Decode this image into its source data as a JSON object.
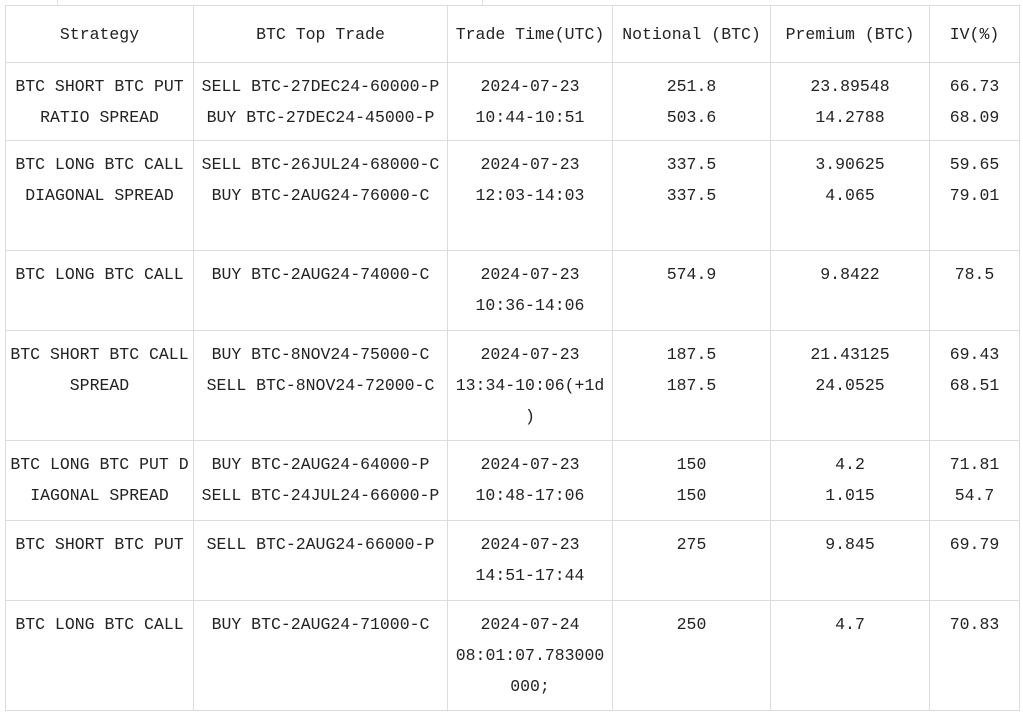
{
  "headers": [
    "Strategy",
    "BTC Top Trade",
    "Trade Time(UTC)",
    "Notional (BTC)",
    "Premium (BTC)",
    "IV(%)"
  ],
  "rows": [
    {
      "strategy": "BTC SHORT BTC PUT RATIO SPREAD",
      "trades": [
        "SELL BTC-27DEC24-60000-P",
        "BUY BTC-27DEC24-45000-P"
      ],
      "time": "2024-07-23\n10:44-10:51",
      "notional": [
        "251.8",
        "503.6"
      ],
      "premium": [
        "23.89548",
        "14.2788"
      ],
      "iv": [
        "66.73",
        "68.09"
      ]
    },
    {
      "strategy": "BTC LONG BTC CALL DIAGONAL SPREAD",
      "trades": [
        "SELL BTC-26JUL24-68000-C",
        "BUY BTC-2AUG24-76000-C"
      ],
      "time": "2024-07-23\n12:03-14:03",
      "notional": [
        "337.5",
        "337.5"
      ],
      "premium": [
        "3.90625",
        "4.065"
      ],
      "iv": [
        "59.65",
        "79.01"
      ]
    },
    {
      "strategy": "BTC LONG BTC CALL",
      "trades": [
        "BUY BTC-2AUG24-74000-C"
      ],
      "time": "2024-07-23\n10:36-14:06",
      "notional": [
        "574.9"
      ],
      "premium": [
        "9.8422"
      ],
      "iv": [
        "78.5"
      ]
    },
    {
      "strategy": "BTC SHORT BTC CALL SPREAD",
      "trades": [
        "BUY BTC-8NOV24-75000-C",
        "SELL BTC-8NOV24-72000-C"
      ],
      "time": "2024-07-23\n13:34-10:06(+1d\n)",
      "notional": [
        "187.5",
        "187.5"
      ],
      "premium": [
        "21.43125",
        "24.0525"
      ],
      "iv": [
        "69.43",
        "68.51"
      ]
    },
    {
      "strategy": "BTC LONG BTC PUT DIAGONAL SPREAD",
      "trades": [
        "BUY BTC-2AUG24-64000-P",
        "SELL BTC-24JUL24-66000-P"
      ],
      "time": "2024-07-23\n10:48-17:06",
      "notional": [
        "150",
        "150"
      ],
      "premium": [
        "4.2",
        "1.015"
      ],
      "iv": [
        "71.81",
        "54.7"
      ]
    },
    {
      "strategy": "BTC SHORT BTC PUT",
      "trades": [
        "SELL BTC-2AUG24-66000-P"
      ],
      "time": "2024-07-23\n14:51-17:44",
      "notional": [
        "275"
      ],
      "premium": [
        "9.845"
      ],
      "iv": [
        "69.79"
      ]
    },
    {
      "strategy": "BTC LONG BTC CALL",
      "trades": [
        "BUY BTC-2AUG24-71000-C"
      ],
      "time": "2024-07-24\n08:01:07.783000\n000;",
      "notional": [
        "250"
      ],
      "premium": [
        "4.7"
      ],
      "iv": [
        "70.83"
      ]
    }
  ]
}
